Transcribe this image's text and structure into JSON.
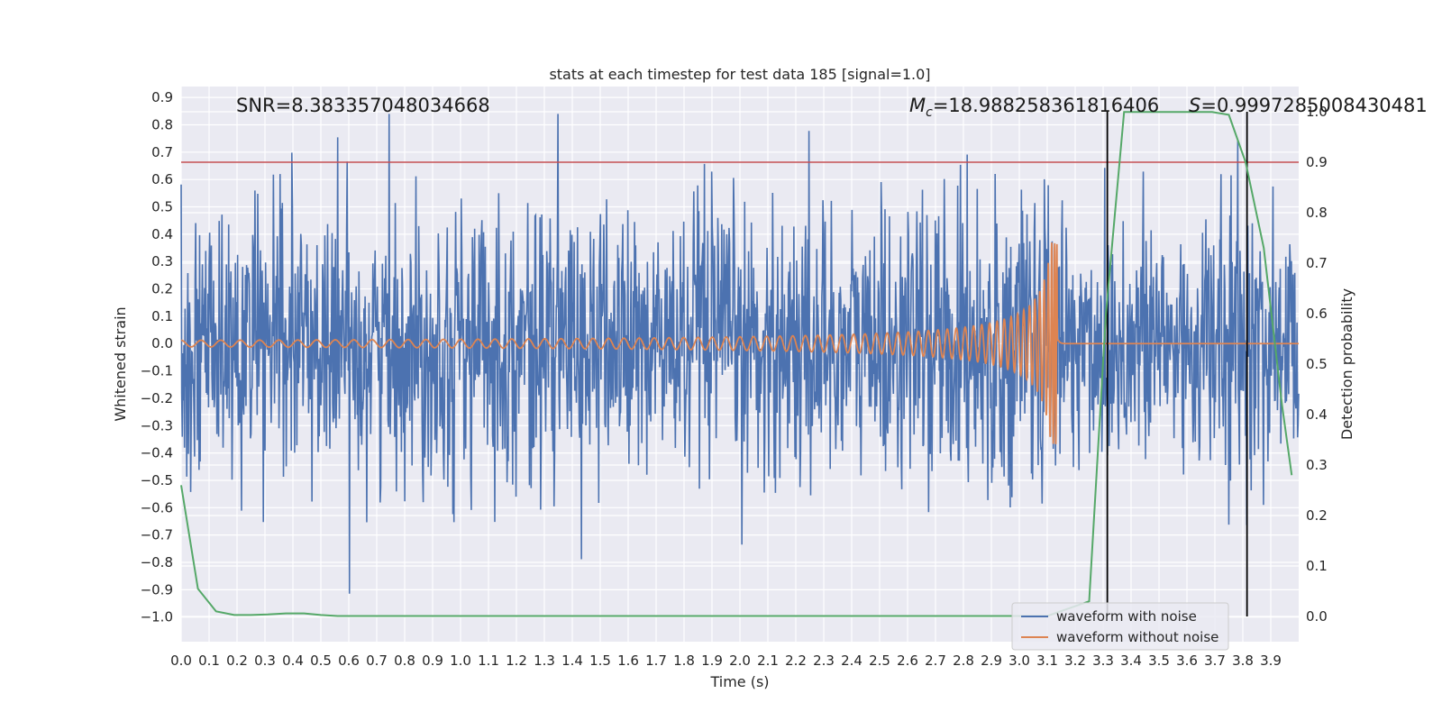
{
  "chart_data": {
    "type": "line",
    "title": "stats at each timestep for test data 185 [signal=1.0]",
    "xlabel": "Time (s)",
    "ylabel": "Whitened strain",
    "y2label": "Detection probability",
    "xlim": [
      0.0,
      4.0
    ],
    "ylim": [
      -1.09,
      0.94
    ],
    "y2lim": [
      -0.05,
      1.05
    ],
    "xticks": [
      "0.0",
      "0.1",
      "0.2",
      "0.3",
      "0.4",
      "0.5",
      "0.6",
      "0.7",
      "0.8",
      "0.9",
      "1.0",
      "1.1",
      "1.2",
      "1.3",
      "1.4",
      "1.5",
      "1.6",
      "1.7",
      "1.8",
      "1.9",
      "2.0",
      "2.1",
      "2.2",
      "2.3",
      "2.4",
      "2.5",
      "2.6",
      "2.7",
      "2.8",
      "2.9",
      "3.0",
      "3.1",
      "3.2",
      "3.3",
      "3.4",
      "3.5",
      "3.6",
      "3.7",
      "3.8",
      "3.9"
    ],
    "yticks": [
      "0.9",
      "0.8",
      "0.7",
      "0.6",
      "0.5",
      "0.4",
      "0.3",
      "0.2",
      "0.1",
      "0.0",
      "−0.1",
      "−0.2",
      "−0.3",
      "−0.4",
      "−0.5",
      "−0.6",
      "−0.7",
      "−0.8",
      "−0.9",
      "−1.0"
    ],
    "y2ticks": [
      "1.0",
      "0.9",
      "0.8",
      "0.7",
      "0.6",
      "0.5",
      "0.4",
      "0.3",
      "0.2",
      "0.1",
      "0.0"
    ],
    "annotations": {
      "snr": "SNR=8.383357048034668",
      "mc_symbol": "M",
      "mc_sub": "c",
      "mc_value": "=18.988258361816406",
      "s_symbol": "S",
      "s_value": "=0.9997285008430481"
    },
    "threshold_line": {
      "y2": 0.9,
      "color": "#c44e52"
    },
    "vertical_lines": [
      3.315,
      3.815
    ],
    "noise_series": {
      "name": "waveform with noise",
      "color": "#4c72b0",
      "n_samples": 2000,
      "amplitude_range": [
        -0.92,
        0.84
      ]
    },
    "signal_series": {
      "name": "waveform without noise",
      "color": "#dd8452",
      "t_merger": 3.14,
      "f_start_hz": 14,
      "amp_start": 0.012,
      "amp_peak": 0.37
    },
    "probability_series": {
      "name": "detection probability",
      "color": "#55a868",
      "x": [
        0.0,
        0.06,
        0.125,
        0.19,
        0.25,
        0.31,
        0.375,
        0.44,
        0.5,
        0.56,
        0.625,
        0.69,
        0.75,
        1.0,
        1.5,
        2.0,
        2.5,
        3.0,
        3.1,
        3.25,
        3.31,
        3.375,
        3.44,
        3.5,
        3.56,
        3.625,
        3.69,
        3.75,
        3.81,
        3.875,
        3.94,
        3.975
      ],
      "y": [
        0.26,
        0.055,
        0.01,
        0.003,
        0.003,
        0.004,
        0.006,
        0.006,
        0.003,
        0.001,
        0.001,
        0.001,
        0.001,
        0.001,
        0.001,
        0.001,
        0.001,
        0.001,
        0.001,
        0.03,
        0.6,
        0.9995,
        0.9995,
        0.9995,
        0.9995,
        0.9995,
        0.9995,
        0.994,
        0.9,
        0.73,
        0.42,
        0.28
      ]
    }
  }
}
